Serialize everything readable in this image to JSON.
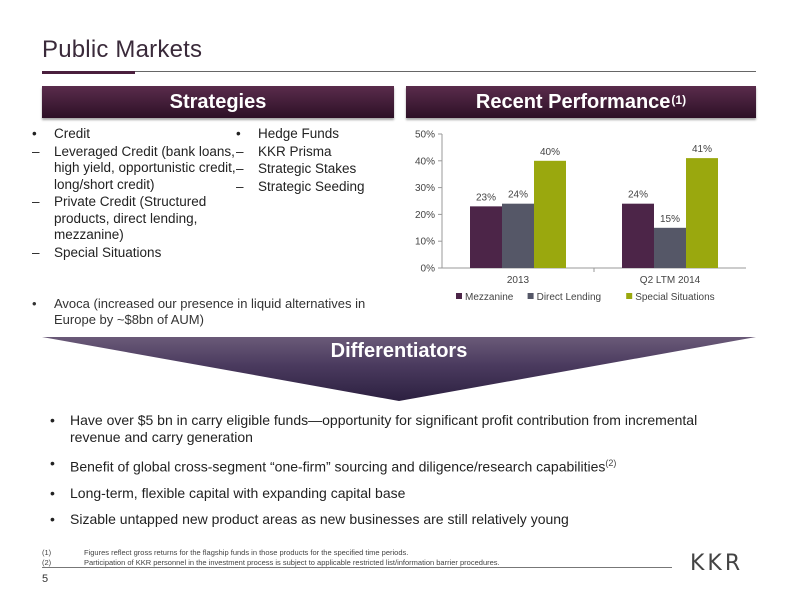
{
  "page": {
    "title": "Public Markets",
    "page_number": "5",
    "logo_text": "KKR"
  },
  "colors": {
    "band": "#4a1f3d",
    "mezzanine": "#4c2548",
    "direct_lending": "#555767",
    "special_situations": "#9aa80e"
  },
  "strategies": {
    "heading": "Strategies",
    "col1": [
      {
        "mark": "•",
        "text": "Credit"
      },
      {
        "mark": "–",
        "text": "Leveraged Credit (bank loans, high yield, opportunistic credit, long/short credit)"
      },
      {
        "mark": "–",
        "text": "Private Credit (Structured products, direct lending, mezzanine)"
      },
      {
        "mark": "–",
        "text": "Special Situations"
      }
    ],
    "col2": [
      {
        "mark": "•",
        "text": "Hedge Funds"
      },
      {
        "mark": "–",
        "text": "KKR Prisma"
      },
      {
        "mark": "–",
        "text": "Strategic Stakes"
      },
      {
        "mark": "–",
        "text": "Strategic Seeding"
      }
    ],
    "avoca": {
      "mark": "•",
      "text": "Avoca (increased our presence in liquid alternatives in Europe by ~$8bn of AUM)"
    }
  },
  "performance": {
    "heading": "Recent Performance",
    "heading_sup": "(1)"
  },
  "chart_data": {
    "type": "bar",
    "categories": [
      "2013",
      "Q2 LTM 2014"
    ],
    "series": [
      {
        "name": "Mezzanine",
        "values": [
          23,
          24
        ],
        "labels": [
          "23%",
          "24%"
        ],
        "color": "#4c2548"
      },
      {
        "name": "Direct Lending",
        "values": [
          24,
          15
        ],
        "labels": [
          "24%",
          "15%"
        ],
        "color": "#555767"
      },
      {
        "name": "Special Situations",
        "values": [
          40,
          41
        ],
        "labels": [
          "40%",
          "41%"
        ],
        "color": "#9aa80e"
      }
    ],
    "ylim": [
      0,
      50
    ],
    "yticks": [
      0,
      10,
      20,
      30,
      40,
      50
    ],
    "ytick_labels": [
      "0%",
      "10%",
      "20%",
      "30%",
      "40%",
      "50%"
    ],
    "legend": "bottom",
    "grid": false
  },
  "differentiators": {
    "heading": "Differentiators",
    "items": [
      {
        "text": "Have over $5 bn in carry eligible funds—opportunity for significant profit contribution from incremental revenue and carry generation",
        "sup": ""
      },
      {
        "text": "Benefit of global cross-segment “one-firm” sourcing and diligence/research capabilities",
        "sup": "(2)"
      },
      {
        "text": "Long-term, flexible capital with expanding capital base",
        "sup": ""
      },
      {
        "text": "Sizable untapped new product areas as new businesses are still relatively young",
        "sup": ""
      }
    ]
  },
  "footnotes": [
    {
      "num": "(1)",
      "text": "Figures reflect gross returns for the flagship funds in those products for the specified time periods."
    },
    {
      "num": "(2)",
      "text": "Participation of KKR personnel in the investment process is subject to applicable restricted list/information barrier procedures."
    }
  ]
}
